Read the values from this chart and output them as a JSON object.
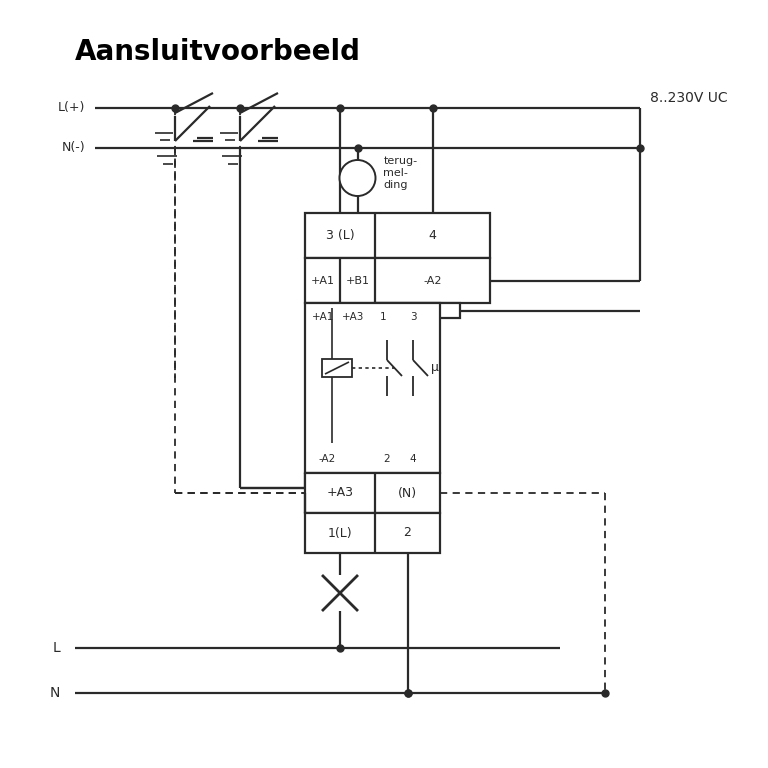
{
  "title": "Aansluitvoorbeeld",
  "title_fontsize": 20,
  "bg_color": "#ffffff",
  "line_color": "#2a2a2a",
  "line_width": 1.6,
  "dashed_lw": 1.3,
  "labels": {
    "Lplus": "L(+)",
    "Nminus": "N(-)",
    "voltage": "8..230V UC",
    "L": "L",
    "N": "N",
    "cell_3L": "3 (L)",
    "cell_4": "4",
    "cell_A1": "+A1",
    "cell_B1": "+B1",
    "cell_A2_top": "-A2",
    "cell_A1mid": "+A1",
    "cell_A3mid": "+A3",
    "cell_1mid": "1",
    "cell_3mid": "3",
    "cell_A2bot": "-A2",
    "cell_2bot": "2",
    "cell_4bot": "4",
    "cell_A3": "+A3",
    "cell_N": "(N)",
    "cell_1L": "1(L)",
    "cell_2": "2",
    "mu": "μ",
    "terugmelding": "terug-\nmel-\nding"
  },
  "figsize": [
    7.68,
    7.68
  ],
  "dpi": 100
}
